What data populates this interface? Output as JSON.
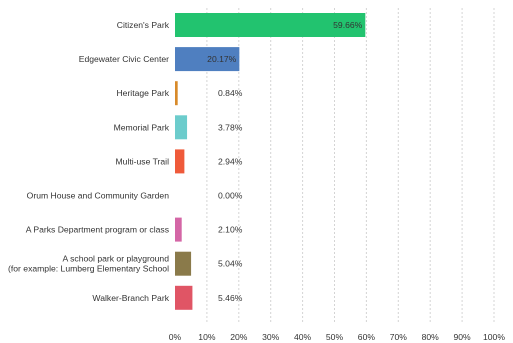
{
  "chart_data": {
    "type": "bar",
    "orientation": "horizontal",
    "categories": [
      [
        "Citizen's Park"
      ],
      [
        "Edgewater Civic Center"
      ],
      [
        "Heritage Park"
      ],
      [
        "Memorial Park"
      ],
      [
        "Multi-use Trail"
      ],
      [
        "Orum House and Community Garden"
      ],
      [
        "A Parks Department program or class"
      ],
      [
        "A school park or playground",
        "(for example: Lumberg Elementary School"
      ],
      [
        "Walker-Branch Park"
      ]
    ],
    "values": [
      59.66,
      20.17,
      0.84,
      3.78,
      2.94,
      0.0,
      2.1,
      5.04,
      5.46
    ],
    "value_labels": [
      "59.66%",
      "20.17%",
      "0.84%",
      "3.78%",
      "2.94%",
      "0.00%",
      "2.10%",
      "5.04%",
      "5.46%"
    ],
    "colors": [
      "#22c36f",
      "#4f7fc0",
      "#d88a2a",
      "#6ccccc",
      "#ef5a3a",
      "#8fc85a",
      "#d466a6",
      "#8a7a4a",
      "#e05565"
    ],
    "xlim": [
      0,
      100
    ],
    "xticks": [
      0,
      10,
      20,
      30,
      40,
      50,
      60,
      70,
      80,
      90,
      100
    ],
    "xtick_labels": [
      "0%",
      "10%",
      "20%",
      "30%",
      "40%",
      "50%",
      "60%",
      "70%",
      "80%",
      "90%",
      "100%"
    ],
    "title": "",
    "xlabel": "",
    "ylabel": "",
    "grid": "vertical dashed",
    "legend": "none"
  }
}
